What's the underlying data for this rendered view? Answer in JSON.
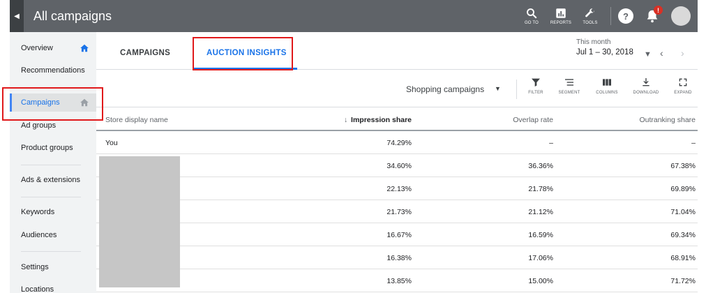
{
  "header": {
    "title": "All campaigns",
    "actions": [
      {
        "label": "GO TO",
        "icon": "search-icon"
      },
      {
        "label": "REPORTS",
        "icon": "reports-icon"
      },
      {
        "label": "TOOLS",
        "icon": "wrench-icon"
      }
    ],
    "help_label": "?",
    "notification_badge": "!"
  },
  "sidebar": {
    "items": [
      {
        "label": "Overview"
      },
      {
        "label": "Recommendations"
      },
      {
        "label": "Campaigns"
      },
      {
        "label": "Ad groups"
      },
      {
        "label": "Product groups"
      },
      {
        "label": "Ads & extensions"
      },
      {
        "label": "Keywords"
      },
      {
        "label": "Audiences"
      },
      {
        "label": "Settings"
      },
      {
        "label": "Locations"
      }
    ],
    "active_item": "Campaigns"
  },
  "tabs": [
    {
      "label": "CAMPAIGNS"
    },
    {
      "label": "AUCTION INSIGHTS"
    }
  ],
  "active_tab": "AUCTION INSIGHTS",
  "date_range": {
    "label": "This month",
    "value": "Jul 1 – 30, 2018"
  },
  "toolbar": {
    "campaign_filter": "Shopping campaigns",
    "tools": [
      {
        "label": "FILTER",
        "icon": "filter-icon"
      },
      {
        "label": "SEGMENT",
        "icon": "segment-icon"
      },
      {
        "label": "COLUMNS",
        "icon": "columns-icon"
      },
      {
        "label": "DOWNLOAD",
        "icon": "download-icon"
      },
      {
        "label": "EXPAND",
        "icon": "expand-icon"
      }
    ]
  },
  "table": {
    "columns": [
      "Store display name",
      "Impression share",
      "Overlap rate",
      "Outranking share"
    ],
    "sort_column": "Impression share",
    "rows": [
      {
        "name": "You",
        "impression_share": "74.29%",
        "overlap_rate": "–",
        "outranking_share": "–"
      },
      {
        "name": "",
        "impression_share": "34.60%",
        "overlap_rate": "36.36%",
        "outranking_share": "67.38%"
      },
      {
        "name": "",
        "impression_share": "22.13%",
        "overlap_rate": "21.78%",
        "outranking_share": "69.89%"
      },
      {
        "name": "",
        "impression_share": "21.73%",
        "overlap_rate": "21.12%",
        "outranking_share": "71.04%"
      },
      {
        "name": "",
        "impression_share": "16.67%",
        "overlap_rate": "16.59%",
        "outranking_share": "69.34%"
      },
      {
        "name": "",
        "impression_share": "16.38%",
        "overlap_rate": "17.06%",
        "outranking_share": "68.91%"
      },
      {
        "name": "",
        "impression_share": "13.85%",
        "overlap_rate": "15.00%",
        "outranking_share": "71.72%"
      }
    ]
  },
  "colors": {
    "topbar": "#5f6368",
    "accent": "#1a73e8",
    "highlight": "#e0191b",
    "redaction": "#c6c6c6"
  }
}
